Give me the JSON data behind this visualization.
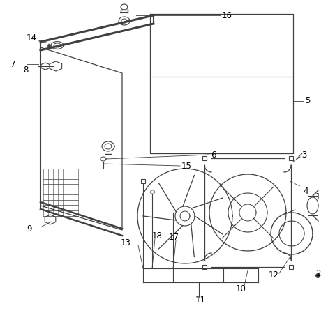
{
  "bg_color": "#ffffff",
  "line_color": "#404040",
  "label_color": "#000000",
  "figsize": [
    4.8,
    4.62
  ],
  "dpi": 100,
  "xlim": [
    0,
    480
  ],
  "ylim": [
    0,
    462
  ]
}
